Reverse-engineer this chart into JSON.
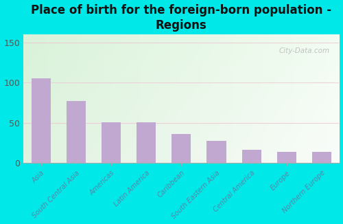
{
  "categories": [
    "Asia",
    "South Central Asia",
    "Americas",
    "Latin America",
    "Caribbean",
    "South Eastern Asia",
    "Central America",
    "Europe",
    "Northern Europe"
  ],
  "values": [
    105,
    77,
    51,
    51,
    36,
    28,
    17,
    14,
    14
  ],
  "bar_color": "#c0a8d0",
  "title": "Place of birth for the foreign-born population -\nRegions",
  "outer_bg": "#00e8e8",
  "plot_bg_color": "#e8f5e8",
  "yticks": [
    0,
    50,
    100,
    150
  ],
  "ylim": [
    0,
    160
  ],
  "watermark": "City-Data.com",
  "tick_label_color": "#5588aa",
  "grid_color": "#ddeecc",
  "title_fontsize": 12
}
